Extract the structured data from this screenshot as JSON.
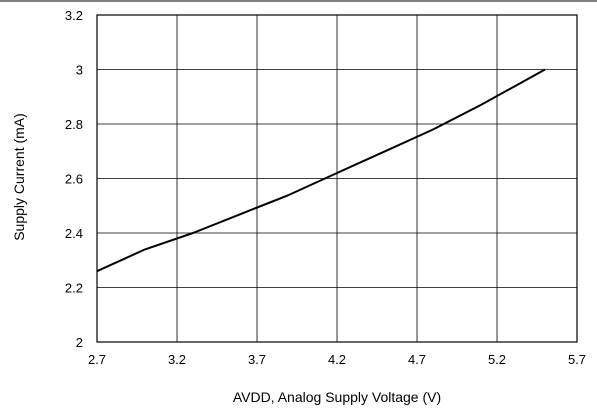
{
  "chart_data": {
    "type": "line",
    "title": "",
    "xlabel": "AVDD, Analog Supply Voltage (V)",
    "ylabel": "Supply Current (mA)",
    "xlim": [
      2.7,
      5.7
    ],
    "ylim": [
      2.0,
      3.2
    ],
    "x_ticks": [
      "2.7",
      "3.2",
      "3.7",
      "4.2",
      "4.7",
      "5.2",
      "5.7"
    ],
    "y_ticks": [
      "2",
      "2.2",
      "2.4",
      "2.6",
      "2.8",
      "3",
      "3.2"
    ],
    "grid": true,
    "legend": "none",
    "series": [
      {
        "x": [
          2.7,
          3.0,
          3.3,
          3.6,
          3.9,
          4.2,
          4.5,
          4.8,
          5.1,
          5.5
        ],
        "y": [
          2.26,
          2.34,
          2.4,
          2.47,
          2.54,
          2.62,
          2.7,
          2.78,
          2.87,
          3.0
        ]
      }
    ],
    "colors": {
      "line": "#000000",
      "grid": "#000000",
      "frame": "#000000"
    }
  }
}
